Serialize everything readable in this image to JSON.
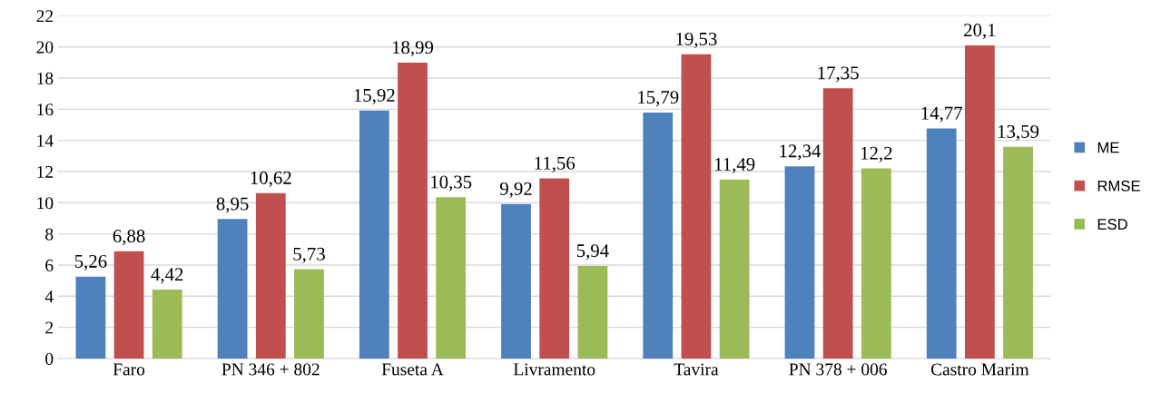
{
  "chart_data": {
    "type": "bar",
    "categories": [
      "Faro",
      "PN 346 + 802",
      "Fuseta A",
      "Livramento",
      "Tavira",
      "PN 378 + 006",
      "Castro Marim"
    ],
    "series": [
      {
        "name": "ME",
        "color": "#4f81bd",
        "values": [
          5.26,
          8.95,
          15.92,
          9.92,
          15.79,
          12.34,
          14.77
        ],
        "value_labels": [
          "5,26",
          "8,95",
          "15,92",
          "9,92",
          "15,79",
          "12,34",
          "14,77"
        ]
      },
      {
        "name": "RMSE",
        "color": "#c0504d",
        "values": [
          6.88,
          10.62,
          18.99,
          11.56,
          19.53,
          17.35,
          20.1
        ],
        "value_labels": [
          "6,88",
          "10,62",
          "18,99",
          "11,56",
          "19,53",
          "17,35",
          "20,1"
        ]
      },
      {
        "name": "ESD",
        "color": "#9bbb59",
        "values": [
          4.42,
          5.73,
          10.35,
          5.94,
          11.49,
          12.2,
          13.59
        ],
        "value_labels": [
          "4,42",
          "5,73",
          "10,35",
          "5,94",
          "11,49",
          "12,2",
          "13,59"
        ]
      }
    ],
    "ylim": [
      0,
      22
    ],
    "yticks": [
      0,
      2,
      4,
      6,
      8,
      10,
      12,
      14,
      16,
      18,
      20,
      22
    ],
    "grid": "y",
    "legend": "right"
  }
}
